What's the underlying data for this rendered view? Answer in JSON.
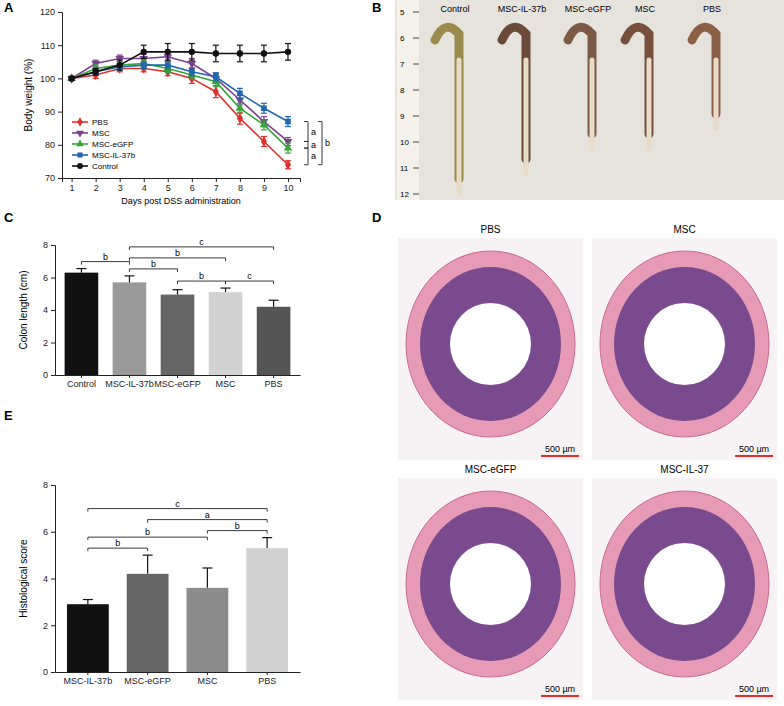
{
  "chart_data": [
    {
      "panel": "A",
      "type": "line",
      "x": [
        1,
        2,
        3,
        4,
        5,
        6,
        7,
        8,
        9,
        10
      ],
      "xlim": [
        0.6,
        10.5
      ],
      "xticks": [
        1,
        2,
        3,
        4,
        5,
        6,
        7,
        8,
        9,
        10
      ],
      "ylim": [
        70,
        120
      ],
      "yticks": [
        70,
        80,
        90,
        100,
        110,
        120
      ],
      "xlabel": "Days post DSS administration",
      "ylabel": "Body weight (%)",
      "legend": "lower left",
      "series": [
        {
          "name": "PBS",
          "color": "#e0302c",
          "marker": "diamond",
          "values": [
            100,
            101,
            103,
            103,
            102,
            100,
            96,
            88,
            81,
            74
          ],
          "errors": [
            0.5,
            1,
            1,
            1,
            1.2,
            1.5,
            1.8,
            1.8,
            1.5,
            1.2
          ]
        },
        {
          "name": "MSC",
          "color": "#7b3f8c",
          "marker": "triangle-down",
          "values": [
            100,
            104.5,
            106,
            106,
            106.5,
            104.5,
            100,
            93.5,
            87,
            81
          ],
          "errors": [
            0.5,
            1,
            1,
            1.2,
            1.5,
            1.5,
            1.5,
            1.5,
            1.5,
            1.2
          ]
        },
        {
          "name": "MSC-eGFP",
          "color": "#35a639",
          "marker": "triangle",
          "values": [
            100,
            103,
            104,
            104.5,
            103,
            101,
            99,
            91,
            86,
            79
          ],
          "errors": [
            0.5,
            1,
            1,
            1,
            1.2,
            1.2,
            1.5,
            1.5,
            1.5,
            1.5
          ]
        },
        {
          "name": "MSC-IL-37b",
          "color": "#2166b1",
          "marker": "square",
          "values": [
            100,
            102,
            103.5,
            104,
            104,
            102,
            100.5,
            95.5,
            91,
            87
          ],
          "errors": [
            0.5,
            1,
            1,
            1,
            1.2,
            1.2,
            1.2,
            1.5,
            1.5,
            1.5
          ]
        },
        {
          "name": "Control",
          "color": "#111111",
          "marker": "circle",
          "values": [
            100,
            102,
            104,
            108,
            108,
            108,
            107.5,
            107.5,
            107.5,
            108
          ],
          "errors": [
            0.5,
            1,
            1.5,
            2,
            2.5,
            2.5,
            2.5,
            2.5,
            2.5,
            2.5
          ]
        }
      ],
      "annotations": [
        {
          "text": "a",
          "between": [
            "MSC-IL-37b",
            "MSC"
          ]
        },
        {
          "text": "a",
          "between": [
            "MSC",
            "MSC-eGFP"
          ]
        },
        {
          "text": "a",
          "between": [
            "MSC-eGFP",
            "PBS"
          ]
        },
        {
          "text": "b",
          "between": [
            "MSC-IL-37b",
            "PBS"
          ]
        }
      ]
    },
    {
      "panel": "C",
      "type": "bar",
      "categories": [
        "Control",
        "MSC-IL-37b",
        "MSC-eGFP",
        "MSC",
        "PBS"
      ],
      "values": [
        6.3,
        5.7,
        4.95,
        5.1,
        4.2
      ],
      "errors": [
        0.25,
        0.4,
        0.3,
        0.25,
        0.4
      ],
      "colors": [
        "#111111",
        "#9a9a9a",
        "#666666",
        "#d2d2d2",
        "#555555"
      ],
      "ylim": [
        0,
        8
      ],
      "yticks": [
        0,
        2,
        4,
        6,
        8
      ],
      "ylabel": "Colon length (cm)",
      "annotations": [
        {
          "text": "b",
          "between": [
            "Control",
            "MSC-IL-37b"
          ]
        },
        {
          "text": "c",
          "between": [
            "MSC-IL-37b",
            "PBS"
          ]
        },
        {
          "text": "b",
          "between": [
            "MSC-IL-37b",
            "MSC"
          ]
        },
        {
          "text": "b",
          "between": [
            "MSC-IL-37b",
            "MSC-eGFP"
          ]
        },
        {
          "text": "b",
          "between": [
            "MSC-eGFP",
            "MSC"
          ]
        },
        {
          "text": "c",
          "between": [
            "MSC",
            "PBS"
          ]
        }
      ]
    },
    {
      "panel": "E",
      "type": "bar",
      "categories": [
        "MSC-IL-37b",
        "MSC-eGFP",
        "MSC",
        "PBS"
      ],
      "values": [
        2.9,
        4.2,
        3.6,
        5.3
      ],
      "errors": [
        0.2,
        0.8,
        0.85,
        0.45
      ],
      "colors": [
        "#111111",
        "#666666",
        "#8c8c8c",
        "#d2d2d2"
      ],
      "ylim": [
        0,
        8
      ],
      "yticks": [
        0,
        2,
        4,
        6,
        8
      ],
      "ylabel": "Histological score",
      "annotations": [
        {
          "text": "c",
          "between": [
            "MSC-IL-37b",
            "PBS"
          ]
        },
        {
          "text": "b",
          "between": [
            "MSC-IL-37b",
            "MSC"
          ]
        },
        {
          "text": "a",
          "between": [
            "MSC-eGFP",
            "PBS"
          ]
        },
        {
          "text": "b",
          "between": [
            "MSC-IL-37b",
            "MSC-eGFP"
          ]
        },
        {
          "text": "b",
          "between": [
            "MSC",
            "PBS"
          ]
        }
      ]
    }
  ],
  "images": [
    {
      "panel": "B",
      "labels": [
        "Control",
        "MSC-IL-37b",
        "MSC-eGFP",
        "MSC",
        "PBS"
      ],
      "ruler": [
        5,
        6,
        7,
        8,
        9,
        10,
        11,
        12
      ]
    },
    {
      "panel": "D",
      "images": [
        {
          "title": "PBS",
          "scale_bar": "500 µm"
        },
        {
          "title": "MSC",
          "scale_bar": "500 µm"
        },
        {
          "title": "MSC-eGFP",
          "scale_bar": "500 µm"
        },
        {
          "title": "MSC-IL-37",
          "scale_bar": "500 µm"
        }
      ]
    }
  ]
}
